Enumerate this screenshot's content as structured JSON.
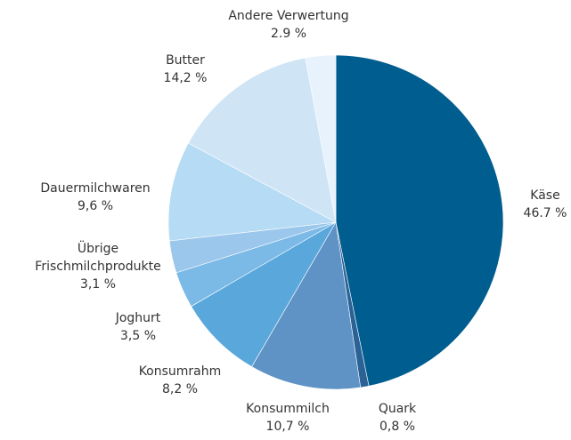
{
  "chart_data": {
    "type": "pie",
    "categories": [
      "Käse",
      "Quark",
      "Konsummilch",
      "Konsumrahm",
      "Joghurt",
      "Übrige Frischmilchprodukte",
      "Dauermilchwaren",
      "Butter",
      "Andere Verwertung"
    ],
    "values": [
      46.7,
      0.8,
      10.7,
      8.2,
      3.5,
      3.1,
      9.6,
      14.2,
      2.9
    ],
    "value_labels": [
      "46.7 %",
      "0,8 %",
      "10,7 %",
      "8,2 %",
      "3,5 %",
      "3,1 %",
      "9,6 %",
      "14,2 %",
      "2.9 %"
    ],
    "colors": [
      "#005d8f",
      "#2a6296",
      "#5f93c6",
      "#5aa7dc",
      "#7bb9e6",
      "#9cc7ec",
      "#b6dbf4",
      "#cfe5f6",
      "#e7f2fc"
    ]
  }
}
